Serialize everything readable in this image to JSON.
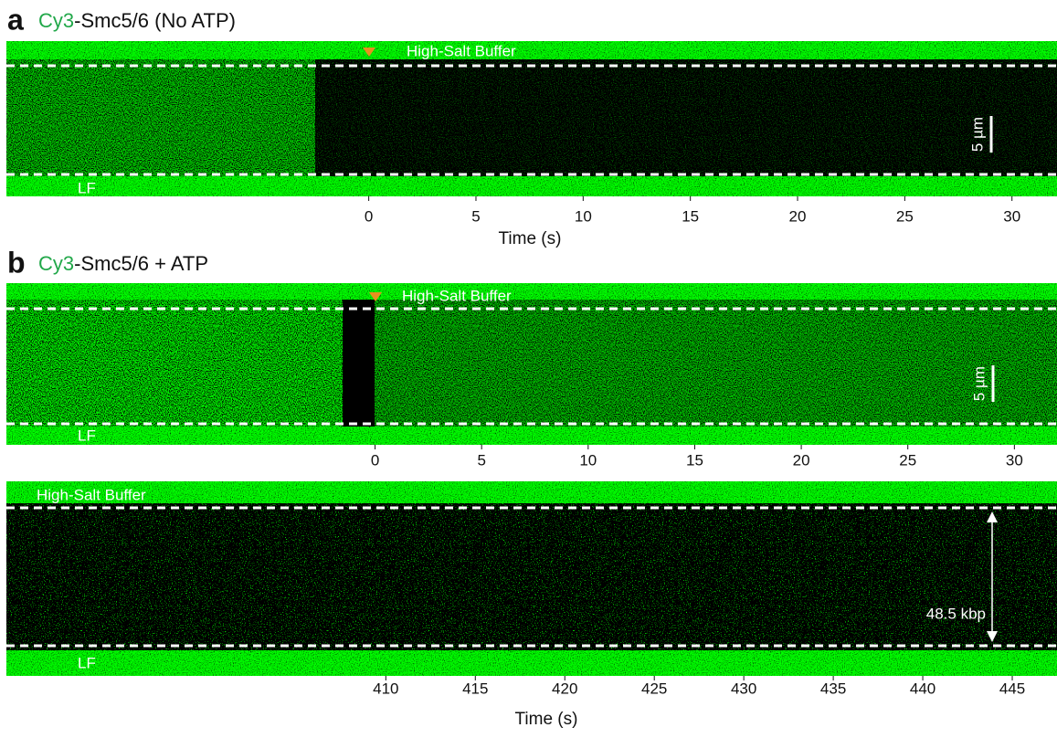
{
  "panels": [
    {
      "label": "a",
      "title_highlight": "Cy3",
      "title_rest": "-Smc5/6 (No ATP)",
      "buffer_label": "High-Salt Buffer",
      "flow_label": "LF",
      "scale_bar_label": "5 µm",
      "axis": {
        "xlim": [
          -16.9,
          32.1
        ],
        "xticks": [
          0,
          5,
          10,
          15,
          20,
          25,
          30
        ],
        "xlabel": "Time (s)"
      }
    },
    {
      "label": "b",
      "title_highlight": "Cy3",
      "title_rest": "-Smc5/6 + ATP",
      "buffer_label": "High-Salt Buffer",
      "flow_label": "LF",
      "scale_bar_label": "5 µm",
      "axis": {
        "xlim": [
          -17.3,
          32.0
        ],
        "xticks": [
          0,
          5,
          10,
          15,
          20,
          25,
          30
        ]
      }
    },
    {
      "buffer_label": "High-Salt Buffer",
      "flow_label": "LF",
      "distance_label": "48.5 kbp",
      "axis": {
        "xlim": [
          388.8,
          447.5
        ],
        "xticks": [
          410,
          415,
          420,
          425,
          430,
          435,
          440,
          445
        ],
        "xlabel": "Time (s)"
      }
    }
  ]
}
